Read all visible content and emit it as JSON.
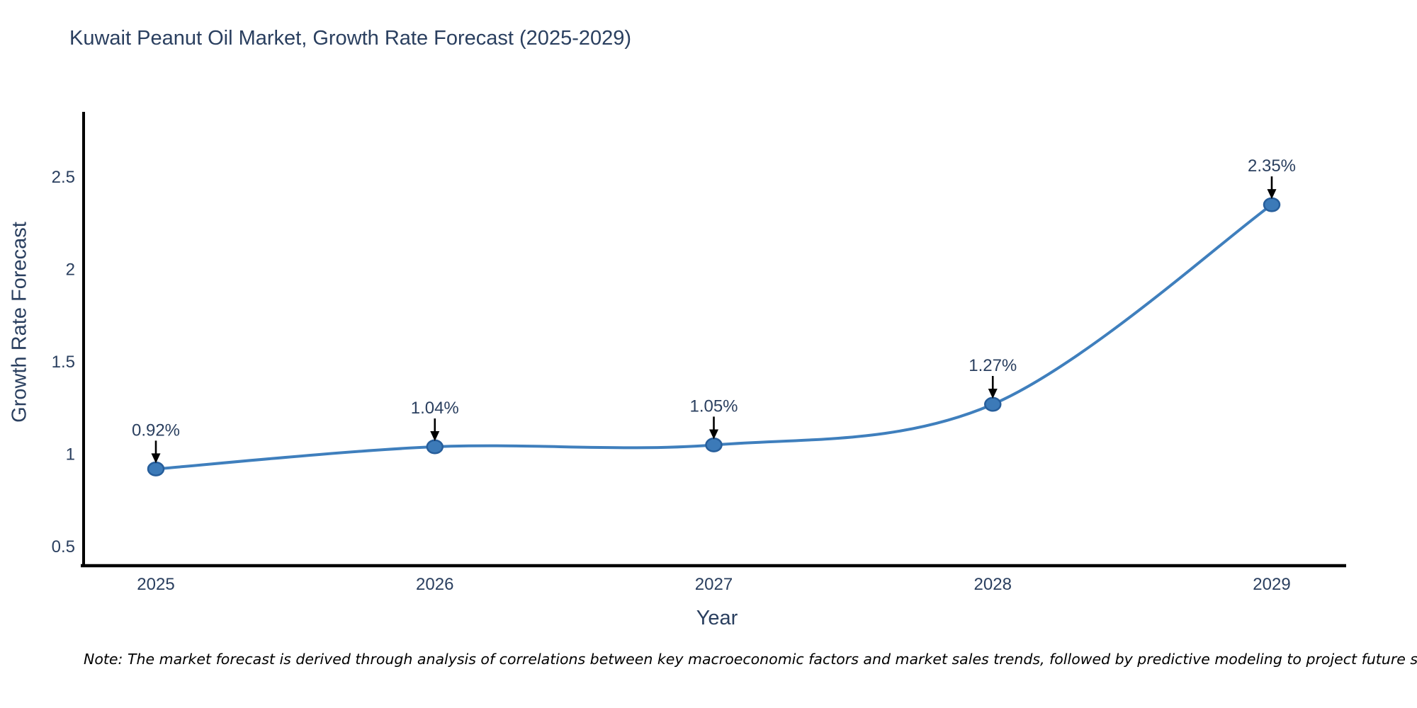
{
  "footer": {
    "note": "Note: The market forecast is derived through analysis of correlations between key macroeconomic factors and market sales trends, followed by predictive modeling to project future sales"
  },
  "chart_data": {
    "type": "line",
    "title": "Kuwait Peanut Oil Market, Growth Rate Forecast (2025-2029)",
    "xlabel": "Year",
    "ylabel": "Growth Rate Forecast",
    "x": [
      "2025",
      "2026",
      "2027",
      "2028",
      "2029"
    ],
    "series": [
      {
        "name": "Growth Rate Forecast",
        "values": [
          0.92,
          1.04,
          1.05,
          1.27,
          2.35
        ]
      }
    ],
    "point_labels": [
      "0.92%",
      "1.04%",
      "1.05%",
      "1.27%",
      "2.35%"
    ],
    "ytick_labels": [
      "0.5",
      "1",
      "1.5",
      "2",
      "2.5"
    ],
    "ytick_values": [
      0.5,
      1,
      1.5,
      2,
      2.5
    ],
    "ylim": [
      0.38,
      2.85
    ],
    "grid": false,
    "legend_position": "none",
    "line_shape": "spline",
    "marker": "circle",
    "annotation_arrows": true,
    "colors": {
      "line": "#3f7fbd",
      "marker_fill": "#3c7ab8",
      "marker_edge": "#275e9b",
      "axis": "#000000",
      "chart_text": "#2a3f5f",
      "annotation_arrow": "#000000",
      "note_text": "#000000",
      "background": "#ffffff"
    }
  }
}
